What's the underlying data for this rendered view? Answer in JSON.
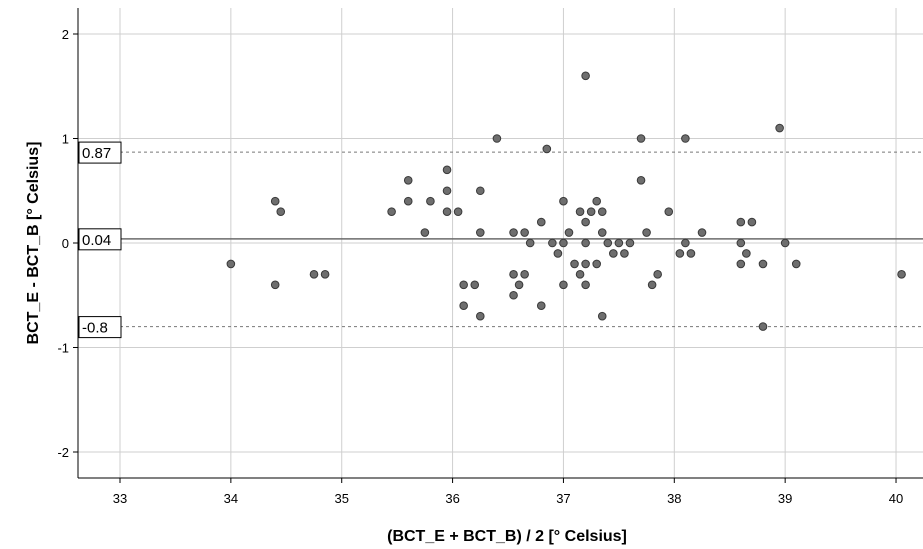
{
  "chart_data": {
    "type": "scatter",
    "title": "",
    "xlabel": "(BCT_E + BCT_B) / 2 [° Celsius]",
    "ylabel": "BCT_E - BCT_B [° Celsius]",
    "xlim": [
      32.6,
      40.3
    ],
    "ylim": [
      -2.2,
      2.25
    ],
    "x_ticks": [
      "33",
      "34",
      "35",
      "36",
      "37",
      "38",
      "39",
      "40"
    ],
    "y_ticks": [
      "2",
      "1",
      "0",
      "-1",
      "-2"
    ],
    "grid": true,
    "reference_lines": [
      {
        "label": "0.87",
        "value": 0.87,
        "style": "dotted"
      },
      {
        "label": "0.04",
        "value": 0.04,
        "style": "solid"
      },
      {
        "label": "-0.8",
        "value": -0.8,
        "style": "dotted"
      }
    ],
    "point_color": "#6e6e6e",
    "points": [
      {
        "x": 34.0,
        "y": -0.2
      },
      {
        "x": 34.4,
        "y": 0.4
      },
      {
        "x": 34.45,
        "y": 0.3
      },
      {
        "x": 34.4,
        "y": -0.4
      },
      {
        "x": 34.75,
        "y": -0.3
      },
      {
        "x": 34.85,
        "y": -0.3
      },
      {
        "x": 35.45,
        "y": 0.3
      },
      {
        "x": 35.6,
        "y": 0.6
      },
      {
        "x": 35.6,
        "y": 0.4
      },
      {
        "x": 35.75,
        "y": 0.1
      },
      {
        "x": 35.8,
        "y": 0.4
      },
      {
        "x": 35.95,
        "y": 0.7
      },
      {
        "x": 35.95,
        "y": 0.5
      },
      {
        "x": 35.95,
        "y": 0.3
      },
      {
        "x": 36.05,
        "y": 0.3
      },
      {
        "x": 36.1,
        "y": -0.4
      },
      {
        "x": 36.1,
        "y": -0.6
      },
      {
        "x": 36.2,
        "y": -0.4
      },
      {
        "x": 36.25,
        "y": 0.5
      },
      {
        "x": 36.25,
        "y": 0.1
      },
      {
        "x": 36.25,
        "y": -0.7
      },
      {
        "x": 36.4,
        "y": 1.0
      },
      {
        "x": 36.55,
        "y": 0.1
      },
      {
        "x": 36.55,
        "y": -0.3
      },
      {
        "x": 36.55,
        "y": -0.5
      },
      {
        "x": 36.6,
        "y": -0.4
      },
      {
        "x": 36.65,
        "y": 0.1
      },
      {
        "x": 36.65,
        "y": -0.3
      },
      {
        "x": 36.7,
        "y": 0.0
      },
      {
        "x": 36.8,
        "y": 0.2
      },
      {
        "x": 36.8,
        "y": -0.6
      },
      {
        "x": 36.85,
        "y": 0.9
      },
      {
        "x": 36.9,
        "y": 0.0
      },
      {
        "x": 36.95,
        "y": -0.1
      },
      {
        "x": 37.0,
        "y": 0.4
      },
      {
        "x": 37.0,
        "y": 0.0
      },
      {
        "x": 37.0,
        "y": -0.4
      },
      {
        "x": 37.05,
        "y": 0.1
      },
      {
        "x": 37.1,
        "y": -0.2
      },
      {
        "x": 37.15,
        "y": 0.3
      },
      {
        "x": 37.15,
        "y": -0.3
      },
      {
        "x": 37.2,
        "y": 1.6
      },
      {
        "x": 37.2,
        "y": 0.2
      },
      {
        "x": 37.2,
        "y": 0.0
      },
      {
        "x": 37.2,
        "y": -0.2
      },
      {
        "x": 37.2,
        "y": -0.4
      },
      {
        "x": 37.25,
        "y": 0.3
      },
      {
        "x": 37.3,
        "y": 0.4
      },
      {
        "x": 37.3,
        "y": -0.2
      },
      {
        "x": 37.35,
        "y": 0.3
      },
      {
        "x": 37.35,
        "y": 0.1
      },
      {
        "x": 37.35,
        "y": -0.7
      },
      {
        "x": 37.4,
        "y": 0.0
      },
      {
        "x": 37.45,
        "y": -0.1
      },
      {
        "x": 37.5,
        "y": 0.0
      },
      {
        "x": 37.55,
        "y": -0.1
      },
      {
        "x": 37.6,
        "y": 0.0
      },
      {
        "x": 37.7,
        "y": 1.0
      },
      {
        "x": 37.7,
        "y": 0.6
      },
      {
        "x": 37.75,
        "y": 0.1
      },
      {
        "x": 37.8,
        "y": -0.4
      },
      {
        "x": 37.85,
        "y": -0.3
      },
      {
        "x": 37.95,
        "y": 0.3
      },
      {
        "x": 38.05,
        "y": -0.1
      },
      {
        "x": 38.1,
        "y": 1.0
      },
      {
        "x": 38.1,
        "y": 0.0
      },
      {
        "x": 38.15,
        "y": -0.1
      },
      {
        "x": 38.25,
        "y": 0.1
      },
      {
        "x": 38.6,
        "y": 0.2
      },
      {
        "x": 38.6,
        "y": 0.0
      },
      {
        "x": 38.6,
        "y": -0.2
      },
      {
        "x": 38.65,
        "y": -0.1
      },
      {
        "x": 38.7,
        "y": 0.2
      },
      {
        "x": 38.8,
        "y": -0.2
      },
      {
        "x": 38.8,
        "y": -0.8
      },
      {
        "x": 38.95,
        "y": 1.1
      },
      {
        "x": 39.0,
        "y": 0.0
      },
      {
        "x": 39.1,
        "y": -0.2
      },
      {
        "x": 40.05,
        "y": -0.3
      }
    ]
  }
}
